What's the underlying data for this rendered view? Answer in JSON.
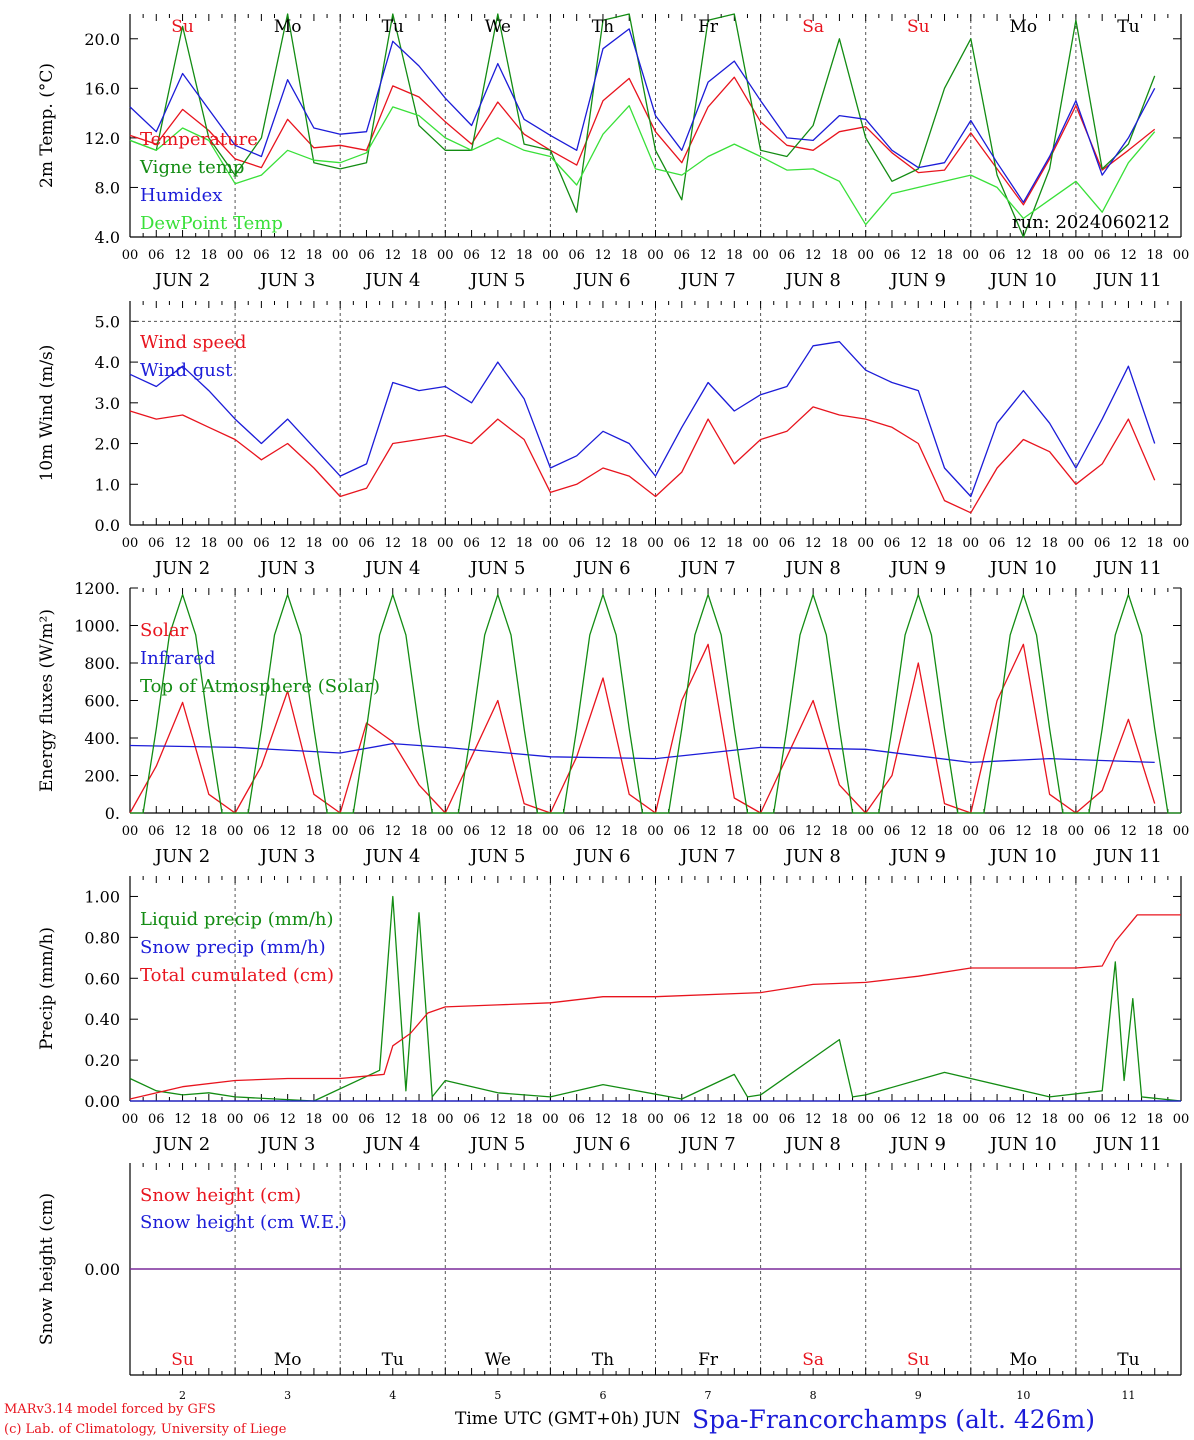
{
  "days": [
    {
      "abbr": "Su",
      "date_label": "JUN  2",
      "num": "2",
      "weekend": true
    },
    {
      "abbr": "Mo",
      "date_label": "JUN  3",
      "num": "3",
      "weekend": false
    },
    {
      "abbr": "Tu",
      "date_label": "JUN  4",
      "num": "4",
      "weekend": false
    },
    {
      "abbr": "We",
      "date_label": "JUN  5",
      "num": "5",
      "weekend": false
    },
    {
      "abbr": "Th",
      "date_label": "JUN  6",
      "num": "6",
      "weekend": false
    },
    {
      "abbr": "Fr",
      "date_label": "JUN  7",
      "num": "7",
      "weekend": false
    },
    {
      "abbr": "Sa",
      "date_label": "JUN  8",
      "num": "8",
      "weekend": true
    },
    {
      "abbr": "Su",
      "date_label": "JUN  9",
      "num": "9",
      "weekend": true
    },
    {
      "abbr": "Mo",
      "date_label": "JUN 10",
      "num": "10",
      "weekend": false
    },
    {
      "abbr": "Tu",
      "date_label": "JUN 11",
      "num": "11",
      "weekend": false
    }
  ],
  "hour_ticks": [
    "00",
    "06",
    "12",
    "18"
  ],
  "colors": {
    "red": "#e8141e",
    "green": "#138c13",
    "blue": "#1c1cd8",
    "lightgreen": "#39e039",
    "purple": "#7a2a9a",
    "wknd": "#e8141e"
  },
  "run_label": "run: 2024060212",
  "footer": {
    "model": "MARv3.14 model forced by GFS",
    "lab": "(c) Lab. of Climatology, University of Liege",
    "xlabel": "Time UTC (GMT+0h) JUN",
    "station": "Spa-Francorchamps (alt. 426m)"
  },
  "chart_data": [
    {
      "type": "line",
      "ylabel": "2m Temp. (°C)",
      "ylim": [
        4,
        22
      ],
      "yticks": [
        "4.0",
        "8.0",
        "12.0",
        "16.0",
        "20.0"
      ],
      "x_unit": "hours since JUN 2 00 UTC",
      "series": [
        {
          "name": "Temperature",
          "color": "red",
          "x": [
            0,
            6,
            12,
            18,
            24,
            30,
            36,
            42,
            48,
            54,
            60,
            66,
            72,
            78,
            84,
            90,
            96,
            102,
            108,
            114,
            120,
            126,
            132,
            138,
            144,
            150,
            156,
            162,
            168,
            174,
            180,
            186,
            192,
            198,
            204,
            210,
            216,
            222,
            228,
            234
          ],
          "values": [
            12.2,
            11.5,
            14.3,
            12.6,
            10.3,
            9.6,
            13.5,
            11.2,
            11.4,
            11.0,
            16.2,
            15.3,
            13.3,
            11.5,
            14.9,
            12.3,
            11.0,
            9.8,
            15.0,
            16.8,
            12.5,
            10.0,
            14.5,
            16.9,
            13.3,
            11.4,
            11.0,
            12.5,
            12.9,
            10.8,
            9.2,
            9.4,
            12.4,
            9.5,
            6.6,
            10.3,
            14.6,
            9.4,
            11.0,
            12.7
          ]
        },
        {
          "name": "Vigne temp",
          "color": "green",
          "x": [
            0,
            6,
            12,
            18,
            24,
            30,
            36,
            42,
            48,
            54,
            60,
            66,
            72,
            78,
            84,
            90,
            96,
            102,
            108,
            114,
            120,
            126,
            132,
            138,
            144,
            150,
            156,
            162,
            168,
            174,
            180,
            186,
            192,
            198,
            204,
            210,
            216,
            222,
            228,
            234
          ],
          "values": [
            11.8,
            11.0,
            21.0,
            12.0,
            9.0,
            12.0,
            23.0,
            10.0,
            9.5,
            10.0,
            22.5,
            13.0,
            11.0,
            11.0,
            22.0,
            11.5,
            11.0,
            6.0,
            21.5,
            23.0,
            11.0,
            7.0,
            21.5,
            24.0,
            11.0,
            10.5,
            13.0,
            20.0,
            12.0,
            8.5,
            9.5,
            16.0,
            20.0,
            9.0,
            4.0,
            9.5,
            21.5,
            9.5,
            11.5,
            17.0
          ]
        },
        {
          "name": "Humidex",
          "color": "blue",
          "x": [
            0,
            6,
            12,
            18,
            24,
            30,
            36,
            42,
            48,
            54,
            60,
            66,
            72,
            78,
            84,
            90,
            96,
            102,
            108,
            114,
            120,
            126,
            132,
            138,
            144,
            150,
            156,
            162,
            168,
            174,
            180,
            186,
            192,
            198,
            204,
            210,
            216,
            222,
            228,
            234
          ],
          "values": [
            14.5,
            12.5,
            17.2,
            14.3,
            11.4,
            10.5,
            16.7,
            12.8,
            12.3,
            12.5,
            19.8,
            17.8,
            15.2,
            13.0,
            18.0,
            13.5,
            12.2,
            11.0,
            19.2,
            20.8,
            13.8,
            11.0,
            16.5,
            18.2,
            15.0,
            12.0,
            11.8,
            13.8,
            13.5,
            11.0,
            9.6,
            10.0,
            13.4,
            10.0,
            6.8,
            10.5,
            15.0,
            9.0,
            12.0,
            16.0
          ]
        },
        {
          "name": "DewPoint Temp",
          "color": "lightgreen",
          "x": [
            0,
            6,
            12,
            18,
            24,
            30,
            36,
            42,
            48,
            54,
            60,
            66,
            72,
            78,
            84,
            90,
            96,
            102,
            108,
            114,
            120,
            126,
            132,
            138,
            144,
            150,
            156,
            162,
            168,
            174,
            180,
            186,
            192,
            198,
            204,
            210,
            216,
            222,
            228,
            234
          ],
          "values": [
            11.8,
            11.0,
            12.8,
            11.8,
            8.3,
            9.0,
            11.0,
            10.2,
            10.0,
            10.8,
            14.5,
            13.8,
            12.0,
            11.0,
            12.0,
            11.0,
            10.5,
            8.2,
            12.3,
            14.6,
            9.5,
            9.0,
            10.5,
            11.5,
            10.5,
            9.4,
            9.5,
            8.5,
            5.0,
            7.5,
            8.0,
            8.5,
            9.0,
            8.0,
            5.5,
            7.0,
            8.5,
            6.0,
            10.0,
            12.5
          ]
        }
      ]
    },
    {
      "type": "line",
      "ylabel": "10m Wind (m/s)",
      "ylim": [
        0,
        5.5
      ],
      "yticks": [
        "0.0",
        "1.0",
        "2.0",
        "3.0",
        "4.0",
        "5.0"
      ],
      "x_unit": "hours since JUN 2 00 UTC",
      "series": [
        {
          "name": "Wind speed",
          "color": "red",
          "x": [
            0,
            6,
            12,
            18,
            24,
            30,
            36,
            42,
            48,
            54,
            60,
            66,
            72,
            78,
            84,
            90,
            96,
            102,
            108,
            114,
            120,
            126,
            132,
            138,
            144,
            150,
            156,
            162,
            168,
            174,
            180,
            186,
            192,
            198,
            204,
            210,
            216,
            222,
            228,
            234
          ],
          "values": [
            2.8,
            2.6,
            2.7,
            2.4,
            2.1,
            1.6,
            2.0,
            1.4,
            0.7,
            0.9,
            2.0,
            2.1,
            2.2,
            2.0,
            2.6,
            2.1,
            0.8,
            1.0,
            1.4,
            1.2,
            0.7,
            1.3,
            2.6,
            1.5,
            2.1,
            2.3,
            2.9,
            2.7,
            2.6,
            2.4,
            2.0,
            0.6,
            0.3,
            1.4,
            2.1,
            1.8,
            1.0,
            1.5,
            2.6,
            1.1
          ]
        },
        {
          "name": "Wind gust",
          "color": "blue",
          "x": [
            0,
            6,
            12,
            18,
            24,
            30,
            36,
            42,
            48,
            54,
            60,
            66,
            72,
            78,
            84,
            90,
            96,
            102,
            108,
            114,
            120,
            126,
            132,
            138,
            144,
            150,
            156,
            162,
            168,
            174,
            180,
            186,
            192,
            198,
            204,
            210,
            216,
            222,
            228,
            234
          ],
          "values": [
            3.7,
            3.4,
            3.9,
            3.3,
            2.6,
            2.0,
            2.6,
            1.9,
            1.2,
            1.5,
            3.5,
            3.3,
            3.4,
            3.0,
            4.0,
            3.1,
            1.4,
            1.7,
            2.3,
            2.0,
            1.2,
            2.4,
            3.5,
            2.8,
            3.2,
            3.4,
            4.4,
            4.5,
            3.8,
            3.5,
            3.3,
            1.4,
            0.7,
            2.5,
            3.3,
            2.5,
            1.4,
            2.6,
            3.9,
            2.0
          ]
        }
      ]
    },
    {
      "type": "line",
      "ylabel": "Energy fluxes (W/m²)",
      "ylim": [
        0,
        1200
      ],
      "yticks": [
        "0.",
        "200.",
        "400.",
        "600.",
        "800.",
        "1000.",
        "1200."
      ],
      "x_unit": "hours since JUN 2 00 UTC",
      "series": [
        {
          "name": "Solar",
          "color": "red",
          "x": [
            0,
            6,
            12,
            18,
            24,
            30,
            36,
            42,
            48,
            54,
            60,
            66,
            72,
            78,
            84,
            90,
            96,
            102,
            108,
            114,
            120,
            126,
            132,
            138,
            144,
            150,
            156,
            162,
            168,
            174,
            180,
            186,
            192,
            198,
            204,
            210,
            216,
            222,
            228,
            234
          ],
          "values": [
            0,
            250,
            590,
            100,
            0,
            250,
            650,
            100,
            0,
            480,
            380,
            150,
            0,
            300,
            600,
            50,
            0,
            300,
            720,
            100,
            0,
            600,
            900,
            80,
            0,
            300,
            600,
            150,
            0,
            200,
            800,
            50,
            0,
            600,
            900,
            100,
            0,
            120,
            500,
            50
          ]
        },
        {
          "name": "Infrared",
          "color": "blue",
          "x": [
            0,
            24,
            48,
            60,
            72,
            96,
            120,
            144,
            168,
            192,
            210,
            234
          ],
          "values": [
            360,
            350,
            320,
            370,
            350,
            300,
            290,
            350,
            340,
            270,
            290,
            270
          ]
        },
        {
          "name": "Top of Atmosphere (Solar)",
          "color": "green",
          "x": [
            0,
            3,
            6,
            9,
            12,
            15,
            18,
            21,
            24
          ],
          "values": [
            0,
            0,
            450,
            950,
            1165,
            950,
            450,
            0,
            0
          ],
          "repeat_daily": true
        }
      ]
    },
    {
      "type": "line",
      "ylabel": "Precip (mm/h)",
      "ylim": [
        0,
        1.1
      ],
      "yticks": [
        "0.00",
        "0.20",
        "0.40",
        "0.60",
        "0.80",
        "1.00"
      ],
      "x_unit": "hours since JUN 2 00 UTC",
      "series": [
        {
          "name": "Liquid precip (mm/h)",
          "color": "green",
          "x": [
            0,
            6,
            12,
            18,
            24,
            42,
            57,
            60,
            63,
            66,
            69,
            72,
            84,
            96,
            108,
            126,
            138,
            141,
            144,
            162,
            165,
            168,
            186,
            210,
            222,
            225,
            227,
            229,
            231,
            240
          ],
          "values": [
            0.11,
            0.05,
            0.03,
            0.04,
            0.02,
            0.0,
            0.15,
            1.0,
            0.05,
            0.92,
            0.02,
            0.1,
            0.04,
            0.02,
            0.08,
            0.01,
            0.13,
            0.02,
            0.03,
            0.3,
            0.02,
            0.03,
            0.14,
            0.02,
            0.05,
            0.68,
            0.1,
            0.5,
            0.02,
            0.0
          ]
        },
        {
          "name": "Snow precip (mm/h)",
          "color": "blue",
          "x": [
            0,
            240
          ],
          "values": [
            0,
            0
          ]
        },
        {
          "name": "Total cumulated (cm)",
          "color": "red",
          "x": [
            0,
            12,
            24,
            36,
            48,
            58,
            60,
            64,
            68,
            72,
            84,
            96,
            108,
            120,
            144,
            156,
            168,
            180,
            192,
            204,
            216,
            222,
            225,
            230,
            240
          ],
          "values": [
            0.01,
            0.07,
            0.1,
            0.11,
            0.11,
            0.13,
            0.27,
            0.33,
            0.43,
            0.46,
            0.47,
            0.48,
            0.51,
            0.51,
            0.53,
            0.57,
            0.58,
            0.61,
            0.65,
            0.65,
            0.65,
            0.66,
            0.78,
            0.91,
            0.91
          ]
        }
      ]
    },
    {
      "type": "line",
      "ylabel": "Snow height (cm)",
      "ylim": [
        -1,
        1
      ],
      "yticks": [
        "0.00"
      ],
      "x_unit": "hours since JUN 2 00 UTC",
      "series": [
        {
          "name": "Snow height (cm)",
          "color": "red",
          "x": [
            0,
            240
          ],
          "values": [
            0,
            0
          ]
        },
        {
          "name": "Snow height (cm W.E.)",
          "color": "blue",
          "x": [
            0,
            240
          ],
          "values": [
            0,
            0
          ]
        }
      ]
    }
  ]
}
